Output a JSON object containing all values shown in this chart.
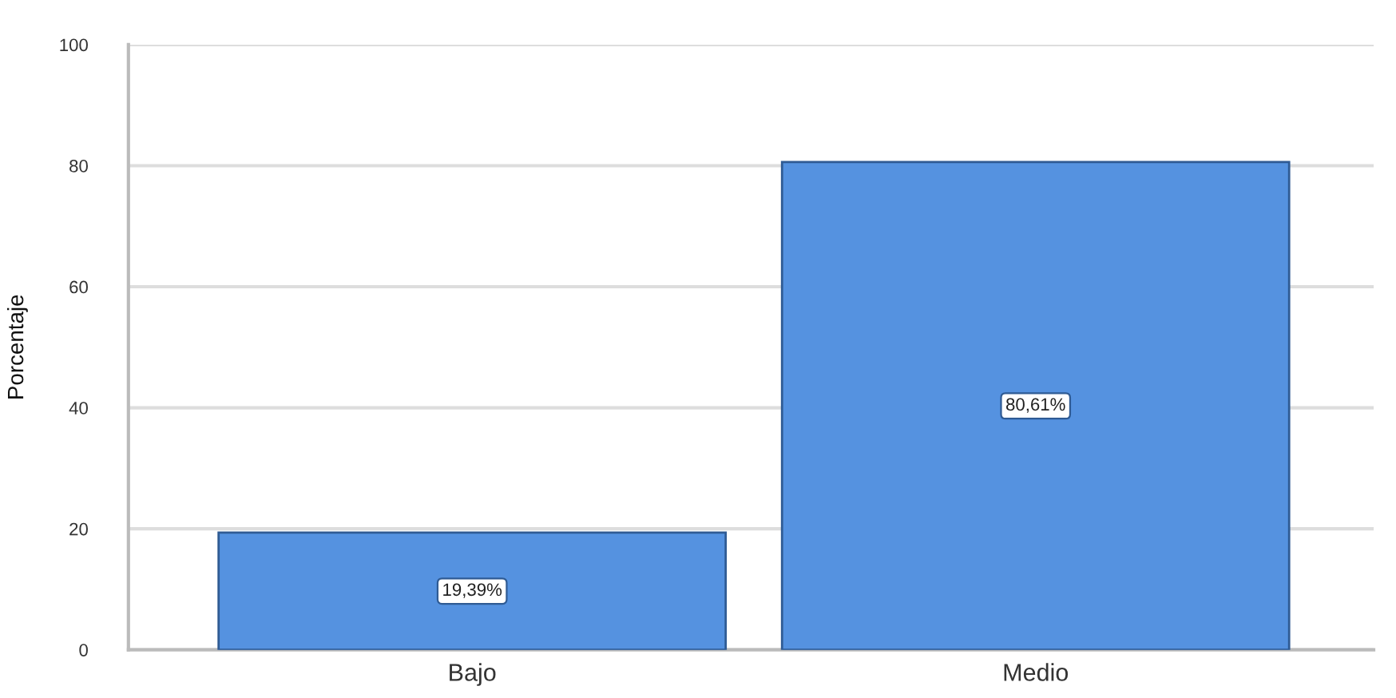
{
  "chart_data": {
    "type": "bar",
    "ylabel": "Porcentaje",
    "categories": [
      "Bajo",
      "Medio"
    ],
    "values": [
      19.39,
      80.61
    ],
    "value_labels": [
      "19,39%",
      "80,61%"
    ],
    "color": "#5592e0",
    "ylim": [
      0,
      100
    ],
    "yticks": [
      0,
      20,
      40,
      60,
      80,
      100
    ],
    "grid": "y"
  }
}
